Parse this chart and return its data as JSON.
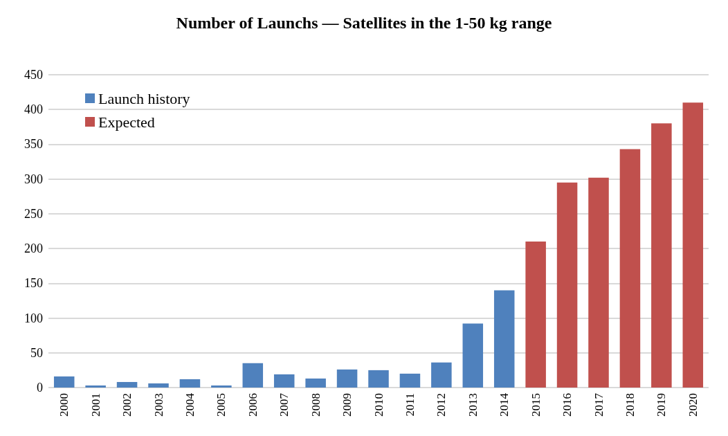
{
  "chart_data": {
    "type": "bar",
    "title": "Number of Launchs — Satellites in the 1-50 kg range",
    "categories": [
      "2000",
      "2001",
      "2002",
      "2003",
      "2004",
      "2005",
      "2006",
      "2007",
      "2008",
      "2009",
      "2010",
      "2011",
      "2012",
      "2013",
      "2014",
      "2015",
      "2016",
      "2017",
      "2018",
      "2019",
      "2020"
    ],
    "series": [
      {
        "name": "Launch history",
        "color": "#4f81bd",
        "values": [
          16,
          3,
          8,
          6,
          12,
          3,
          35,
          19,
          13,
          26,
          25,
          20,
          36,
          92,
          140,
          null,
          null,
          null,
          null,
          null,
          null
        ]
      },
      {
        "name": "Expected",
        "color": "#c0504d",
        "values": [
          null,
          null,
          null,
          null,
          null,
          null,
          null,
          null,
          null,
          null,
          null,
          null,
          null,
          null,
          null,
          210,
          295,
          302,
          343,
          380,
          410
        ]
      }
    ],
    "stacked": true,
    "ylim": [
      0,
      450
    ],
    "yticks": [
      0,
      50,
      100,
      150,
      200,
      250,
      300,
      350,
      400,
      450
    ],
    "grid": "y",
    "legend": "top left"
  }
}
